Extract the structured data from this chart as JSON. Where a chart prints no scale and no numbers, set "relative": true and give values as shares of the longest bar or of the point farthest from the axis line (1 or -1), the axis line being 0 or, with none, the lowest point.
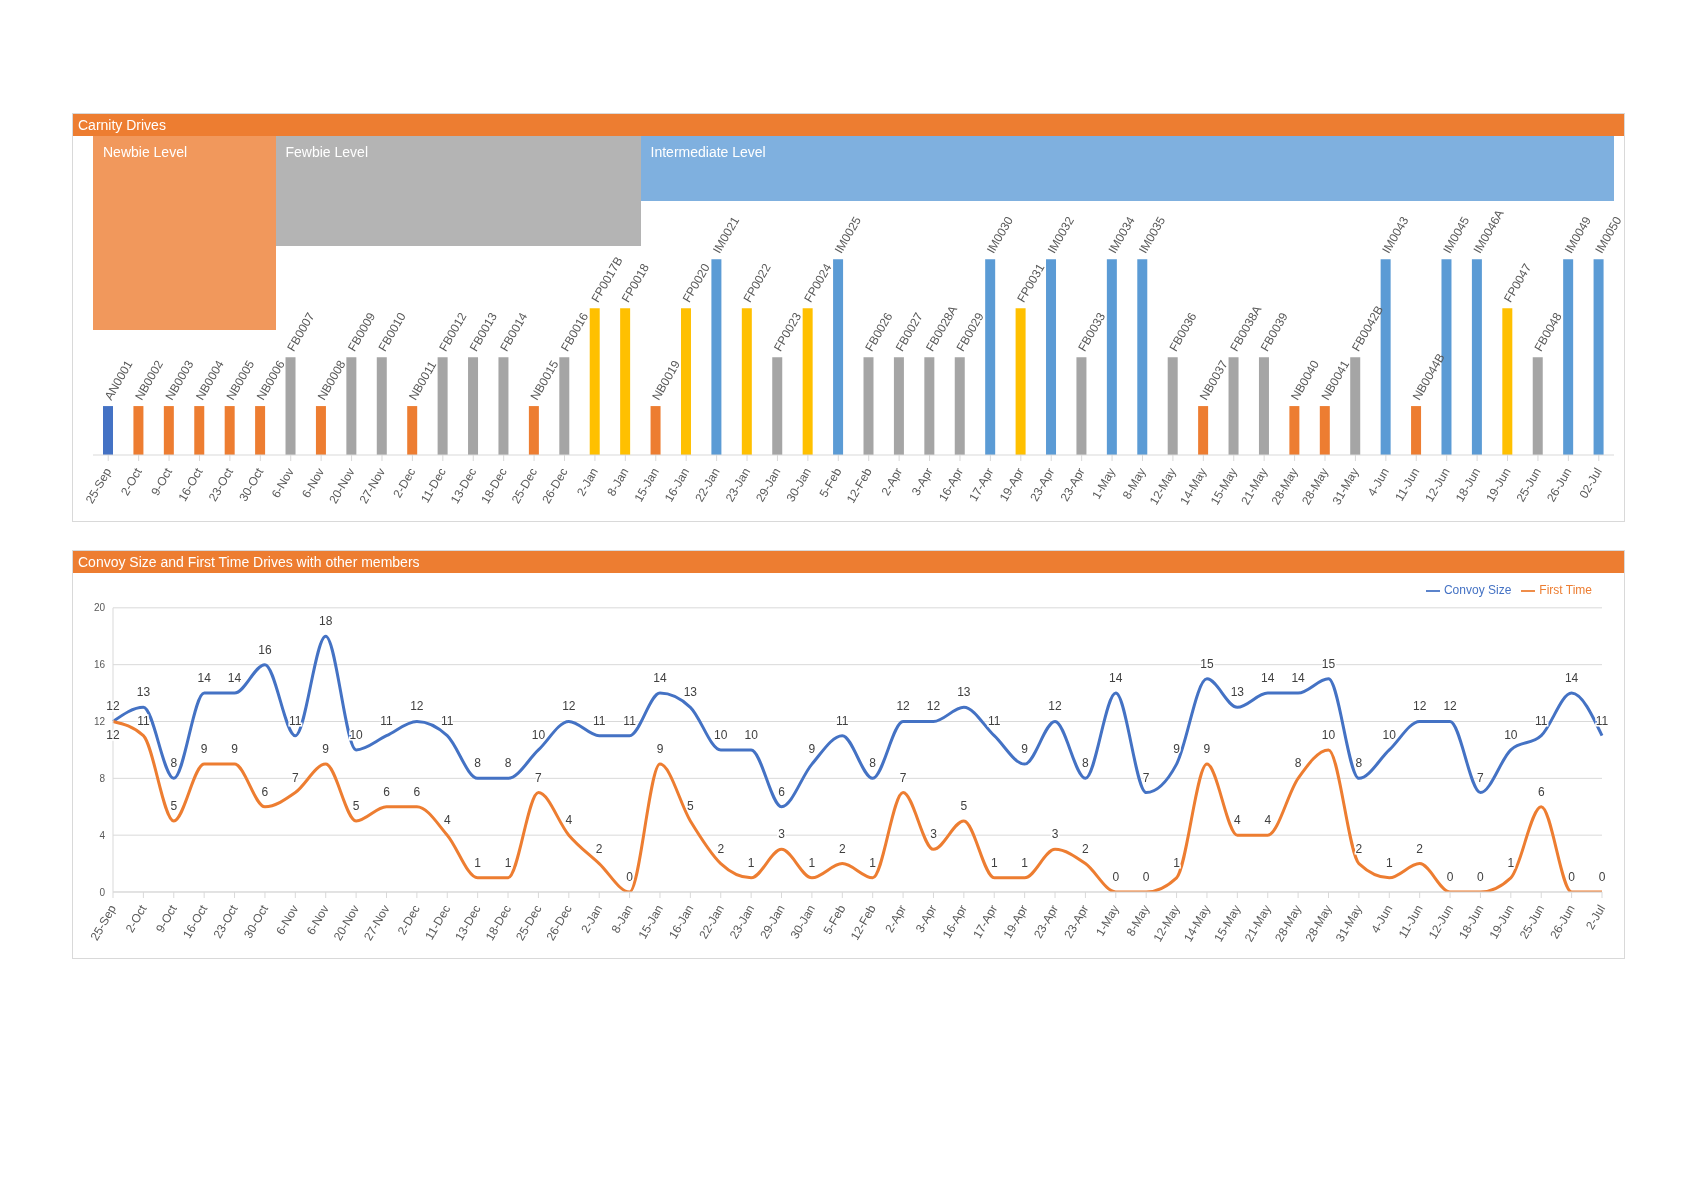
{
  "chart_data": [
    {
      "type": "bar",
      "title": "Carnity Drives",
      "relative": true,
      "categories": [
        "25-Sep",
        "2-Oct",
        "9-Oct",
        "16-Oct",
        "23-Oct",
        "30-Oct",
        "6-Nov",
        "6-Nov",
        "20-Nov",
        "27-Nov",
        "2-Dec",
        "11-Dec",
        "13-Dec",
        "18-Dec",
        "25-Dec",
        "26-Dec",
        "2-Jan",
        "8-Jan",
        "15-Jan",
        "16-Jan",
        "22-Jan",
        "23-Jan",
        "29-Jan",
        "30-Jan",
        "5-Feb",
        "12-Feb",
        "2-Apr",
        "3-Apr",
        "16-Apr",
        "17-Apr",
        "19-Apr",
        "23-Apr",
        "23-Apr",
        "1-May",
        "8-May",
        "12-May",
        "14-May",
        "15-May",
        "21-May",
        "28-May",
        "28-May",
        "31-May",
        "4-Jun",
        "11-Jun",
        "12-Jun",
        "18-Jun",
        "19-Jun",
        "25-Jun",
        "26-Jun",
        "02-Jul"
      ],
      "values": [
        0.25,
        0.25,
        0.25,
        0.25,
        0.25,
        0.25,
        0.5,
        0.25,
        0.5,
        0.5,
        0.25,
        0.5,
        0.5,
        0.5,
        0.25,
        0.5,
        0.75,
        0.75,
        0.25,
        0.75,
        1,
        0.75,
        0.5,
        0.75,
        1,
        0.5,
        0.5,
        0.5,
        0.5,
        1,
        0.75,
        1,
        0.5,
        1,
        1,
        0.5,
        0.25,
        0.5,
        0.5,
        0.25,
        0.25,
        0.5,
        1,
        0.25,
        1,
        1,
        0.75,
        0.5,
        1,
        1
      ],
      "colors": [
        "#4472c4",
        "#ed7d31",
        "#ed7d31",
        "#ed7d31",
        "#ed7d31",
        "#ed7d31",
        "#a5a5a5",
        "#ed7d31",
        "#a5a5a5",
        "#a5a5a5",
        "#ed7d31",
        "#a5a5a5",
        "#a5a5a5",
        "#a5a5a5",
        "#ed7d31",
        "#a5a5a5",
        "#ffc000",
        "#ffc000",
        "#ed7d31",
        "#ffc000",
        "#5b9bd5",
        "#ffc000",
        "#a5a5a5",
        "#ffc000",
        "#5b9bd5",
        "#a5a5a5",
        "#a5a5a5",
        "#a5a5a5",
        "#a5a5a5",
        "#5b9bd5",
        "#ffc000",
        "#5b9bd5",
        "#a5a5a5",
        "#5b9bd5",
        "#5b9bd5",
        "#a5a5a5",
        "#ed7d31",
        "#a5a5a5",
        "#a5a5a5",
        "#ed7d31",
        "#ed7d31",
        "#a5a5a5",
        "#5b9bd5",
        "#ed7d31",
        "#5b9bd5",
        "#5b9bd5",
        "#ffc000",
        "#a5a5a5",
        "#5b9bd5",
        "#5b9bd5"
      ],
      "annotations": [
        "Newbie Level",
        "Fewbie Level",
        "Intermediate Level",
        {
          "text": "AN0001",
          "x": "25-Sep",
          "y": 0.25
        },
        {
          "text": "NB0002",
          "x": "2-Oct",
          "y": 0.25
        },
        {
          "text": "NB0003",
          "x": "9-Oct",
          "y": 0.25
        },
        {
          "text": "NB0004",
          "x": "16-Oct",
          "y": 0.25
        },
        {
          "text": "NB0005",
          "x": "23-Oct",
          "y": 0.25
        },
        {
          "text": "NB0006",
          "x": "30-Oct",
          "y": 0.25
        },
        {
          "text": "FB0007",
          "x": "6-Nov",
          "y": 0.5
        },
        {
          "text": "NB0008",
          "x": "6-Nov",
          "y": 0.25
        },
        {
          "text": "FB0009",
          "x": "20-Nov",
          "y": 0.5
        },
        {
          "text": "FB0010",
          "x": "27-Nov",
          "y": 0.5
        },
        {
          "text": "NB0011",
          "x": "2-Dec",
          "y": 0.25
        },
        {
          "text": "FB0012",
          "x": "11-Dec",
          "y": 0.5
        },
        {
          "text": "FB0013",
          "x": "13-Dec",
          "y": 0.5
        },
        {
          "text": "FB0014",
          "x": "18-Dec",
          "y": 0.5
        },
        {
          "text": "NB0015",
          "x": "25-Dec",
          "y": 0.25
        },
        {
          "text": "FB0016",
          "x": "26-Dec",
          "y": 0.5
        },
        {
          "text": "FP0017B",
          "x": "2-Jan",
          "y": 0.75
        },
        {
          "text": "FP0018",
          "x": "8-Jan",
          "y": 0.75
        },
        {
          "text": "NB0019",
          "x": "15-Jan",
          "y": 0.25
        },
        {
          "text": "FP0020",
          "x": "16-Jan",
          "y": 0.75
        },
        {
          "text": "IM0021",
          "x": "22-Jan",
          "y": 1
        },
        {
          "text": "FP0022",
          "x": "23-Jan",
          "y": 0.75
        },
        {
          "text": "FP0023",
          "x": "29-Jan",
          "y": 0.5
        },
        {
          "text": "FP0024",
          "x": "30-Jan",
          "y": 0.75
        },
        {
          "text": "IM0025",
          "x": "5-Feb",
          "y": 1
        },
        {
          "text": "FB0026",
          "x": "12-Feb",
          "y": 0.5
        },
        {
          "text": "FB0027",
          "x": "2-Apr",
          "y": 0.5
        },
        {
          "text": "FB0028A",
          "x": "3-Apr",
          "y": 0.5
        },
        {
          "text": "FB0029",
          "x": "16-Apr",
          "y": 0.5
        },
        {
          "text": "IM0030",
          "x": "17-Apr",
          "y": 1
        },
        {
          "text": "FP0031",
          "x": "19-Apr",
          "y": 0.75
        },
        {
          "text": "IM0032",
          "x": "23-Apr",
          "y": 1
        },
        {
          "text": "FB0033",
          "x": "23-Apr",
          "y": 0.5
        },
        {
          "text": "IM0034",
          "x": "1-May",
          "y": 1
        },
        {
          "text": "IM0035",
          "x": "8-May",
          "y": 1
        },
        {
          "text": "FB0036",
          "x": "12-May",
          "y": 0.5
        },
        {
          "text": "NB0037",
          "x": "14-May",
          "y": 0.25
        },
        {
          "text": "FB0038A",
          "x": "15-May",
          "y": 0.5
        },
        {
          "text": "FB0039",
          "x": "21-May",
          "y": 0.5
        },
        {
          "text": "NB0040",
          "x": "28-May",
          "y": 0.25
        },
        {
          "text": "NB0041",
          "x": "28-May",
          "y": 0.25
        },
        {
          "text": "FB0042B",
          "x": "31-May",
          "y": 0.5
        },
        {
          "text": "IM0043",
          "x": "4-Jun",
          "y": 1
        },
        {
          "text": "NB0044B",
          "x": "11-Jun",
          "y": 0.25
        },
        {
          "text": "IM0045",
          "x": "12-Jun",
          "y": 1
        },
        {
          "text": "IM0046A",
          "x": "18-Jun",
          "y": 1
        },
        {
          "text": "FP0047",
          "x": "19-Jun",
          "y": 0.75
        },
        {
          "text": "FB0048",
          "x": "25-Jun",
          "y": 0.5
        },
        {
          "text": "IM0049",
          "x": "26-Jun",
          "y": 1
        },
        {
          "text": "IM0050",
          "x": "02-Jul",
          "y": 1
        }
      ]
    },
    {
      "type": "line",
      "title": "Convoy Size and First Time Drives with other members",
      "categories": [
        "25-Sep",
        "2-Oct",
        "9-Oct",
        "16-Oct",
        "23-Oct",
        "30-Oct",
        "6-Nov",
        "6-Nov",
        "20-Nov",
        "27-Nov",
        "2-Dec",
        "11-Dec",
        "13-Dec",
        "18-Dec",
        "25-Dec",
        "26-Dec",
        "2-Jan",
        "8-Jan",
        "15-Jan",
        "16-Jan",
        "22-Jan",
        "23-Jan",
        "29-Jan",
        "30-Jan",
        "5-Feb",
        "12-Feb",
        "2-Apr",
        "3-Apr",
        "16-Apr",
        "17-Apr",
        "19-Apr",
        "23-Apr",
        "23-Apr",
        "1-May",
        "8-May",
        "12-May",
        "14-May",
        "15-May",
        "21-May",
        "28-May",
        "28-May",
        "31-May",
        "4-Jun",
        "11-Jun",
        "12-Jun",
        "18-Jun",
        "19-Jun",
        "25-Jun",
        "26-Jun",
        "2-Jul"
      ],
      "series": [
        {
          "name": "Convoy Size",
          "color": "#4472c4",
          "values": [
            12,
            13,
            8,
            14,
            14,
            16,
            11,
            18,
            10,
            11,
            12,
            11,
            8,
            8,
            10,
            12,
            11,
            11,
            14,
            13,
            10,
            10,
            6,
            9,
            11,
            8,
            12,
            12,
            13,
            11,
            9,
            12,
            8,
            14,
            7,
            9,
            15,
            13,
            14,
            14,
            15,
            8,
            10,
            12,
            12,
            7,
            10,
            11,
            14,
            11
          ]
        },
        {
          "name": "First Time",
          "color": "#ed7d31",
          "values": [
            12,
            11,
            5,
            9,
            9,
            6,
            7,
            9,
            5,
            6,
            6,
            4,
            1,
            1,
            7,
            4,
            2,
            0,
            9,
            5,
            2,
            1,
            3,
            1,
            2,
            1,
            7,
            3,
            5,
            1,
            1,
            3,
            2,
            0,
            0,
            1,
            9,
            4,
            4,
            8,
            10,
            2,
            1,
            2,
            0,
            0,
            1,
            6,
            0,
            0
          ]
        }
      ],
      "ylim": [
        0,
        20
      ],
      "yticks": [
        0,
        4,
        8,
        12,
        16,
        20
      ],
      "grid": "y",
      "legend": "top right",
      "data_labels": true
    }
  ]
}
